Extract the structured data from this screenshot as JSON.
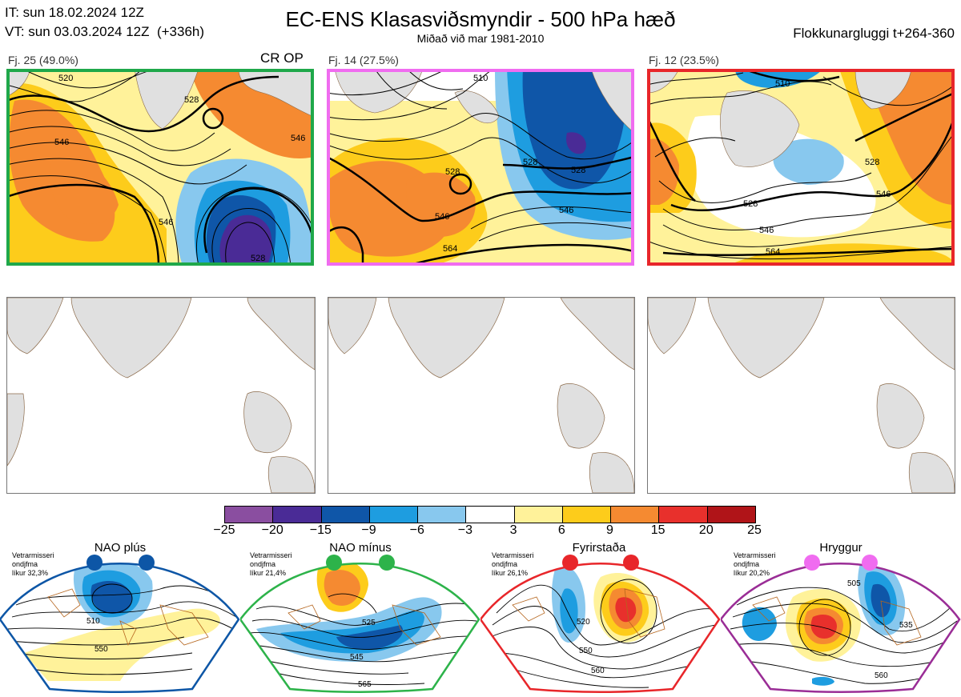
{
  "header": {
    "it": "IT: sun 18.02.2024 12Z",
    "vt": "VT: sun 03.03.2024 12Z  (+336h)",
    "title": "EC-ENS Klasasviðsmyndir - 500 hPa hæð",
    "subtitle": "Miðað við mar 1981-2010",
    "window": "Flokkunargluggi t+264-360"
  },
  "clusters": [
    {
      "label": "Fj. 25 (49.0%)",
      "border_color": "#1fa84a",
      "extra": "CR OP",
      "contours": [
        "520",
        "528",
        "546",
        "546",
        "528",
        "546"
      ]
    },
    {
      "label": "Fj. 14 (27.5%)",
      "border_color": "#f06cf0",
      "extra": "",
      "contours": [
        "510",
        "528",
        "528",
        "528",
        "546",
        "564",
        "546"
      ]
    },
    {
      "label": "Fj. 12 (23.5%)",
      "border_color": "#e8262a",
      "extra": "",
      "contours": [
        "510",
        "528",
        "528",
        "546",
        "564",
        "546"
      ]
    }
  ],
  "colorbar": {
    "colors": [
      "#8a4ea0",
      "#4a2b96",
      "#0f56a8",
      "#1e9de0",
      "#88c8ee",
      "#ffffff",
      "#fff29a",
      "#fdcc1b",
      "#f58a31",
      "#e8302c",
      "#b01418"
    ],
    "ticks": [
      "−25",
      "−20",
      "−15",
      "−9",
      "−6",
      "−3",
      "3",
      "6",
      "9",
      "15",
      "20",
      "25"
    ]
  },
  "regimes": [
    {
      "name": "NAO plús",
      "note": "Vetrarmisseri\nondjfma\nlíkur 32,3%",
      "color": "#0d56a6",
      "contours": [
        "510",
        "550"
      ]
    },
    {
      "name": "NAO mínus",
      "note": "Vetrarmisseri\nondjfma\nlíkur 21,4%",
      "color": "#2db34a",
      "contours": [
        "525",
        "545",
        "565"
      ]
    },
    {
      "name": "Fyrirstaða",
      "note": "Vetrarmisseri\nondjfma\nlíkur 26,1%",
      "color": "#e8262a",
      "contours": [
        "520",
        "550",
        "560"
      ]
    },
    {
      "name": "Hryggur",
      "note": "Vetrarmisseri\nondjfma\nlíkur 20,2%",
      "color": "#9a2d96",
      "contours": [
        "505",
        "535",
        "560"
      ]
    }
  ]
}
